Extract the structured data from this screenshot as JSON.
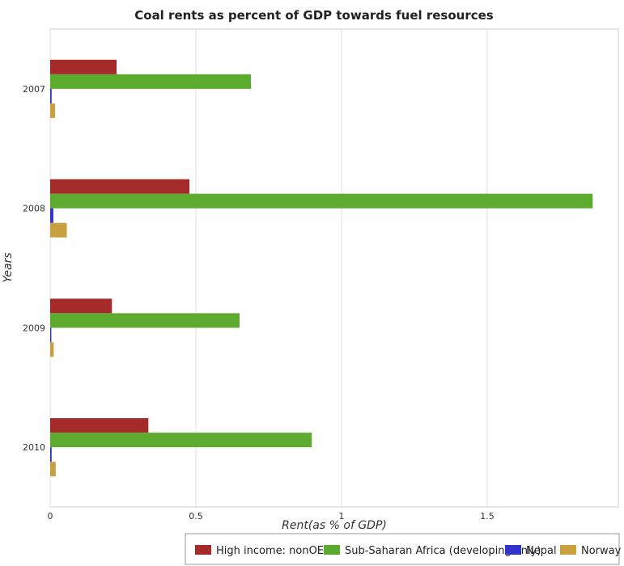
{
  "chart_data": {
    "type": "bar",
    "orientation": "horizontal",
    "title": "Coal rents as percent of GDP towards fuel resources",
    "xlabel": "Rent(as % of GDP)",
    "ylabel": "Years",
    "categories": [
      "2007",
      "2008",
      "2009",
      "2010"
    ],
    "xlim": [
      0,
      1.95
    ],
    "xticks": [
      "0",
      "0.5",
      "1",
      "1.5"
    ],
    "xtick_values": [
      0,
      0.5,
      1,
      1.5
    ],
    "grid": true,
    "legend_position": "bottom-right",
    "series": [
      {
        "name": "High income: nonOECD",
        "color": "#a52a2a",
        "values": [
          0.228,
          0.478,
          0.212,
          0.337
        ]
      },
      {
        "name": "Sub-Saharan Africa (developing only)",
        "color": "#5cab2e",
        "values": [
          0.689,
          1.862,
          0.65,
          0.898
        ]
      },
      {
        "name": "Nepal",
        "color": "#3333cc",
        "values": [
          0.005,
          0.011,
          0.004,
          0.005
        ]
      },
      {
        "name": "Norway",
        "color": "#c8a040",
        "values": [
          0.017,
          0.057,
          0.012,
          0.019
        ]
      }
    ]
  }
}
